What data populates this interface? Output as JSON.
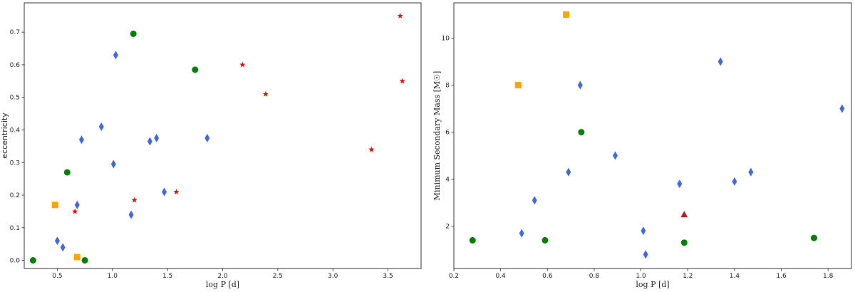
{
  "chart_data": [
    {
      "type": "scatter",
      "xlabel": "log P [d]",
      "ylabel": "eccentricity",
      "xlim": [
        0.2,
        3.8
      ],
      "ylim": [
        -0.025,
        0.79
      ],
      "x_ticks": [
        0.5,
        1.0,
        1.5,
        2.0,
        2.5,
        3.0,
        3.5
      ],
      "x_tick_labels": [
        "0.5",
        "1.0",
        "1.5",
        "2.0",
        "2.5",
        "3.0",
        "3.5"
      ],
      "y_ticks": [
        0.0,
        0.1,
        0.2,
        0.3,
        0.4,
        0.5,
        0.6,
        0.7
      ],
      "y_tick_labels": [
        "0.0",
        "0.1",
        "0.2",
        "0.3",
        "0.4",
        "0.5",
        "0.6",
        "0.7"
      ],
      "grid": false,
      "series": [
        {
          "marker": "diamond",
          "color": "#4169e1",
          "points": [
            [
              0.5,
              0.06
            ],
            [
              0.55,
              0.04
            ],
            [
              0.68,
              0.17
            ],
            [
              0.72,
              0.37
            ],
            [
              0.9,
              0.41
            ],
            [
              1.01,
              0.295
            ],
            [
              1.03,
              0.63
            ],
            [
              1.17,
              0.14
            ],
            [
              1.34,
              0.365
            ],
            [
              1.4,
              0.375
            ],
            [
              1.47,
              0.21
            ],
            [
              1.86,
              0.375
            ]
          ]
        },
        {
          "marker": "circle",
          "color": "#008000",
          "points": [
            [
              0.28,
              0.0
            ],
            [
              0.59,
              0.27
            ],
            [
              0.75,
              0.0
            ],
            [
              1.19,
              0.695
            ],
            [
              1.75,
              0.585
            ]
          ]
        },
        {
          "marker": "square",
          "color": "#ffa500",
          "points": [
            [
              0.48,
              0.17
            ],
            [
              0.68,
              0.01
            ]
          ]
        },
        {
          "marker": "star",
          "color": "#ff0000",
          "points": [
            [
              0.66,
              0.15
            ],
            [
              1.2,
              0.185
            ],
            [
              1.58,
              0.21
            ],
            [
              2.18,
              0.6
            ],
            [
              2.39,
              0.51
            ],
            [
              3.35,
              0.34
            ],
            [
              3.61,
              0.75
            ],
            [
              3.63,
              0.55
            ]
          ]
        }
      ]
    },
    {
      "type": "scatter",
      "xlabel": "log P [d]",
      "ylabel": "Minimum Secondary Mass [M☉]",
      "xlim": [
        0.2,
        1.9
      ],
      "ylim": [
        0.2,
        11.5
      ],
      "x_ticks": [
        0.2,
        0.4,
        0.6,
        0.8,
        1.0,
        1.2,
        1.4,
        1.6,
        1.8
      ],
      "x_tick_labels": [
        "0.2",
        "0.4",
        "0.6",
        "0.8",
        "1.0",
        "1.2",
        "1.4",
        "1.6",
        "1.8"
      ],
      "y_ticks": [
        2,
        4,
        6,
        8,
        10
      ],
      "y_tick_labels": [
        "2",
        "4",
        "6",
        "8",
        "10"
      ],
      "grid": false,
      "series": [
        {
          "marker": "diamond",
          "color": "#4169e1",
          "points": [
            [
              0.49,
              1.7
            ],
            [
              0.545,
              3.1
            ],
            [
              0.69,
              4.3
            ],
            [
              0.74,
              8.0
            ],
            [
              0.89,
              5.0
            ],
            [
              1.01,
              1.8
            ],
            [
              1.02,
              0.8
            ],
            [
              1.165,
              3.8
            ],
            [
              1.34,
              9.0
            ],
            [
              1.4,
              3.9
            ],
            [
              1.47,
              4.3
            ],
            [
              1.86,
              7.0
            ]
          ]
        },
        {
          "marker": "circle",
          "color": "#008000",
          "points": [
            [
              0.28,
              1.4
            ],
            [
              0.59,
              1.4
            ],
            [
              0.745,
              6.0
            ],
            [
              1.185,
              1.3
            ],
            [
              1.74,
              1.5
            ]
          ]
        },
        {
          "marker": "square",
          "color": "#ffa500",
          "points": [
            [
              0.475,
              8.0
            ],
            [
              0.68,
              11.0
            ]
          ]
        },
        {
          "marker": "triangle",
          "color": "#b22222",
          "points": [
            [
              1.185,
              2.5
            ]
          ]
        }
      ]
    }
  ]
}
